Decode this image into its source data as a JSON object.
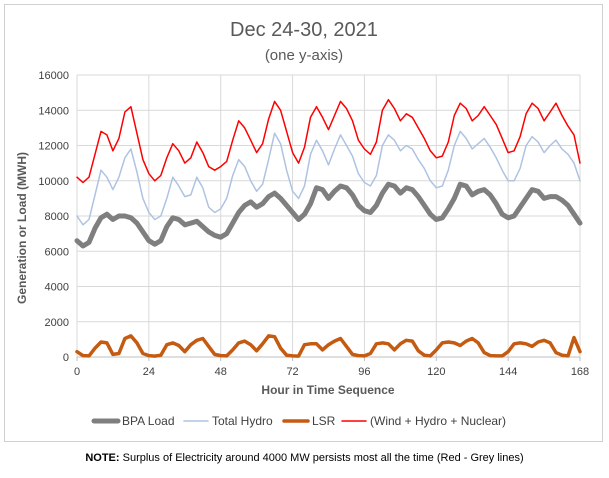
{
  "chart_data": {
    "type": "line",
    "title": "Dec 24-30, 2021",
    "subtitle": "(one y-axis)",
    "xlabel": "Hour in Time Sequence",
    "ylabel": "Generation or Load (MWH)",
    "xlim": [
      0,
      168
    ],
    "ylim": [
      0,
      16000
    ],
    "x_ticks": [
      0,
      24,
      48,
      72,
      96,
      120,
      144,
      168
    ],
    "y_ticks": [
      0,
      2000,
      4000,
      6000,
      8000,
      10000,
      12000,
      14000,
      16000
    ],
    "grid": true,
    "legend_position": "bottom",
    "series": [
      {
        "name": "BPA Load",
        "color": "#7f7f7f",
        "x": [
          0,
          2,
          4,
          6,
          8,
          10,
          12,
          14,
          16,
          18,
          20,
          22,
          24,
          26,
          28,
          30,
          32,
          34,
          36,
          38,
          40,
          42,
          44,
          46,
          48,
          50,
          52,
          54,
          56,
          58,
          60,
          62,
          64,
          66,
          68,
          70,
          72,
          74,
          76,
          78,
          80,
          82,
          84,
          86,
          88,
          90,
          92,
          94,
          96,
          98,
          100,
          102,
          104,
          106,
          108,
          110,
          112,
          114,
          116,
          118,
          120,
          122,
          124,
          126,
          128,
          130,
          132,
          134,
          136,
          138,
          140,
          142,
          144,
          146,
          148,
          150,
          152,
          154,
          156,
          158,
          160,
          162,
          164,
          166,
          168
        ],
        "y": [
          6600,
          6300,
          6500,
          7300,
          7900,
          8100,
          7800,
          8000,
          8000,
          7900,
          7600,
          7100,
          6600,
          6400,
          6600,
          7400,
          7900,
          7800,
          7500,
          7600,
          7700,
          7400,
          7100,
          6900,
          6800,
          7000,
          7600,
          8200,
          8600,
          8800,
          8500,
          8700,
          9100,
          9300,
          9000,
          8600,
          8200,
          7800,
          8100,
          8700,
          9600,
          9500,
          9000,
          9400,
          9700,
          9600,
          9200,
          8600,
          8300,
          8200,
          8600,
          9300,
          9800,
          9700,
          9300,
          9600,
          9500,
          9100,
          8600,
          8100,
          7800,
          7900,
          8400,
          9000,
          9800,
          9700,
          9200,
          9400,
          9500,
          9200,
          8700,
          8100,
          7900,
          8000,
          8500,
          9000,
          9500,
          9400,
          9000,
          9100,
          9100,
          8900,
          8600,
          8100,
          7600
        ]
      },
      {
        "name": "Total Hydro",
        "color": "#aec3e2",
        "x": [
          0,
          2,
          4,
          6,
          8,
          10,
          12,
          14,
          16,
          18,
          20,
          22,
          24,
          26,
          28,
          30,
          32,
          34,
          36,
          38,
          40,
          42,
          44,
          46,
          48,
          50,
          52,
          54,
          56,
          58,
          60,
          62,
          64,
          66,
          68,
          70,
          72,
          74,
          76,
          78,
          80,
          82,
          84,
          86,
          88,
          90,
          92,
          94,
          96,
          98,
          100,
          102,
          104,
          106,
          108,
          110,
          112,
          114,
          116,
          118,
          120,
          122,
          124,
          126,
          128,
          130,
          132,
          134,
          136,
          138,
          140,
          142,
          144,
          146,
          148,
          150,
          152,
          154,
          156,
          158,
          160,
          162,
          164,
          166,
          168
        ],
        "y": [
          8000,
          7500,
          7800,
          9200,
          10600,
          10200,
          9500,
          10200,
          11300,
          11800,
          10500,
          9000,
          8200,
          7800,
          8000,
          9000,
          10200,
          9700,
          9100,
          9200,
          10200,
          9600,
          8500,
          8200,
          8400,
          9000,
          10300,
          11200,
          10800,
          10000,
          9400,
          9800,
          11200,
          12700,
          12100,
          10600,
          9400,
          9000,
          9700,
          11500,
          12300,
          11700,
          10900,
          11800,
          12600,
          12000,
          11400,
          10400,
          9900,
          9700,
          10300,
          12000,
          12600,
          12300,
          11700,
          12000,
          11800,
          11200,
          10700,
          10000,
          9600,
          9700,
          10600,
          12000,
          12800,
          12400,
          11800,
          12100,
          12400,
          11900,
          11300,
          10600,
          10000,
          10000,
          10700,
          12000,
          12500,
          12200,
          11600,
          12000,
          12300,
          11800,
          11500,
          11000,
          10000
        ]
      },
      {
        "name": "LSR",
        "color": "#c55a11",
        "x": [
          0,
          2,
          4,
          6,
          8,
          10,
          12,
          14,
          16,
          18,
          20,
          22,
          24,
          26,
          28,
          30,
          32,
          34,
          36,
          38,
          40,
          42,
          44,
          46,
          48,
          50,
          52,
          54,
          56,
          58,
          60,
          62,
          64,
          66,
          68,
          70,
          72,
          74,
          76,
          78,
          80,
          82,
          84,
          86,
          88,
          90,
          92,
          94,
          96,
          98,
          100,
          102,
          104,
          106,
          108,
          110,
          112,
          114,
          116,
          118,
          120,
          122,
          124,
          126,
          128,
          130,
          132,
          134,
          136,
          138,
          140,
          142,
          144,
          146,
          148,
          150,
          152,
          154,
          156,
          158,
          160,
          162,
          164,
          166,
          168
        ],
        "y": [
          300,
          80,
          60,
          500,
          850,
          800,
          150,
          200,
          1050,
          1200,
          800,
          200,
          80,
          50,
          100,
          700,
          800,
          650,
          300,
          700,
          950,
          1050,
          600,
          150,
          80,
          60,
          400,
          800,
          900,
          700,
          350,
          750,
          1200,
          1150,
          500,
          100,
          60,
          50,
          700,
          750,
          750,
          400,
          700,
          900,
          1050,
          600,
          150,
          80,
          60,
          200,
          750,
          800,
          750,
          400,
          750,
          950,
          900,
          350,
          100,
          60,
          400,
          800,
          850,
          800,
          650,
          900,
          1050,
          800,
          250,
          80,
          60,
          60,
          300,
          750,
          800,
          750,
          600,
          850,
          950,
          800,
          250,
          100,
          60,
          1100,
          300
        ]
      },
      {
        "name": "(Wind + Hydro + Nuclear)",
        "color": "#ff0000",
        "x": [
          0,
          2,
          4,
          6,
          8,
          10,
          12,
          14,
          16,
          18,
          20,
          22,
          24,
          26,
          28,
          30,
          32,
          34,
          36,
          38,
          40,
          42,
          44,
          46,
          48,
          50,
          52,
          54,
          56,
          58,
          60,
          62,
          64,
          66,
          68,
          70,
          72,
          74,
          76,
          78,
          80,
          82,
          84,
          86,
          88,
          90,
          92,
          94,
          96,
          98,
          100,
          102,
          104,
          106,
          108,
          110,
          112,
          114,
          116,
          118,
          120,
          122,
          124,
          126,
          128,
          130,
          132,
          134,
          136,
          138,
          140,
          142,
          144,
          146,
          148,
          150,
          152,
          154,
          156,
          158,
          160,
          162,
          164,
          166,
          168
        ],
        "y": [
          10200,
          9900,
          10200,
          11500,
          12800,
          12600,
          11700,
          12400,
          13900,
          14200,
          12700,
          11200,
          10400,
          10000,
          10300,
          11300,
          12100,
          11700,
          11000,
          11300,
          12200,
          11600,
          10800,
          10600,
          10800,
          11100,
          12300,
          13400,
          13000,
          12300,
          11600,
          12100,
          13500,
          14500,
          14000,
          12800,
          11600,
          11000,
          11900,
          13600,
          14200,
          13600,
          12900,
          13700,
          14500,
          14100,
          13400,
          12300,
          11800,
          11500,
          12200,
          14000,
          14600,
          14100,
          13400,
          13800,
          13600,
          13000,
          12400,
          11700,
          11300,
          11400,
          12200,
          13700,
          14400,
          14100,
          13400,
          13700,
          14200,
          13700,
          13200,
          12400,
          11600,
          11700,
          12500,
          13800,
          14400,
          14100,
          13400,
          13900,
          14400,
          13700,
          13100,
          12600,
          11000
        ]
      }
    ]
  },
  "note": {
    "prefix": "NOTE:",
    "text": " Surplus of Electricity around 4000 MW persists most all the time (Red - Grey lines)"
  }
}
